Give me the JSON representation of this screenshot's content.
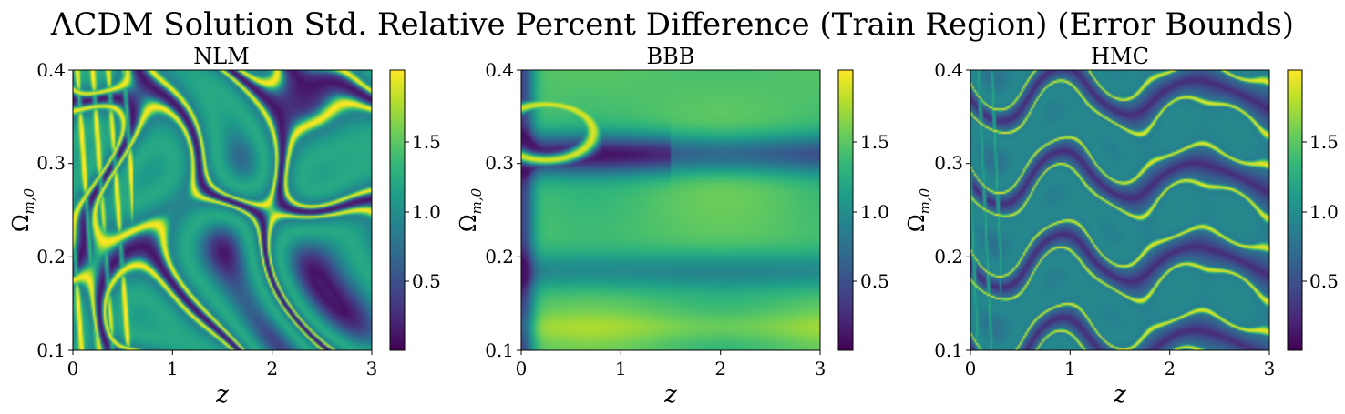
{
  "figure": {
    "suptitle": "ΛCDM Solution Std. Relative Percent Difference (Train Region) (Error Bounds)"
  },
  "chart_data": [
    {
      "type": "heatmap",
      "title": "NLM",
      "xlabel": "z",
      "ylabel": "Ω",
      "ylabel_sub": "m,0",
      "xlim": [
        0,
        3
      ],
      "ylim": [
        0.1,
        0.4
      ],
      "xticks": [
        "0",
        "1",
        "2",
        "3"
      ],
      "yticks": [
        "0.1",
        "0.2",
        "0.3",
        "0.4"
      ],
      "colormap": "viridis",
      "colorbar_ticks": [
        "0.5",
        "1.0",
        "1.5"
      ],
      "colorbar_range": [
        0.02,
        1.95
      ]
    },
    {
      "type": "heatmap",
      "title": "BBB",
      "xlabel": "z",
      "ylabel": "Ω",
      "ylabel_sub": "m,0",
      "xlim": [
        0,
        3
      ],
      "ylim": [
        0.1,
        0.4
      ],
      "xticks": [
        "0",
        "1",
        "2",
        "3"
      ],
      "yticks": [
        "0.1",
        "0.2",
        "0.3",
        "0.4"
      ],
      "colormap": "viridis",
      "colorbar_ticks": [
        "0.5",
        "1.0",
        "1.5"
      ],
      "colorbar_range": [
        0.02,
        1.95
      ]
    },
    {
      "type": "heatmap",
      "title": "HMC",
      "xlabel": "z",
      "ylabel": "Ω",
      "ylabel_sub": "m,0",
      "xlim": [
        0,
        3
      ],
      "ylim": [
        0.1,
        0.4
      ],
      "xticks": [
        "0",
        "1",
        "2",
        "3"
      ],
      "yticks": [
        "0.1",
        "0.2",
        "0.3",
        "0.4"
      ],
      "colormap": "viridis",
      "colorbar_ticks": [
        "0.5",
        "1.0",
        "1.5"
      ],
      "colorbar_range": [
        0.02,
        1.95
      ]
    }
  ],
  "colors": {
    "viridis_stops": [
      "#440154",
      "#482878",
      "#3e4989",
      "#31688e",
      "#26828e",
      "#1f9e89",
      "#35b779",
      "#6ece58",
      "#b5de2b",
      "#fde725"
    ]
  }
}
